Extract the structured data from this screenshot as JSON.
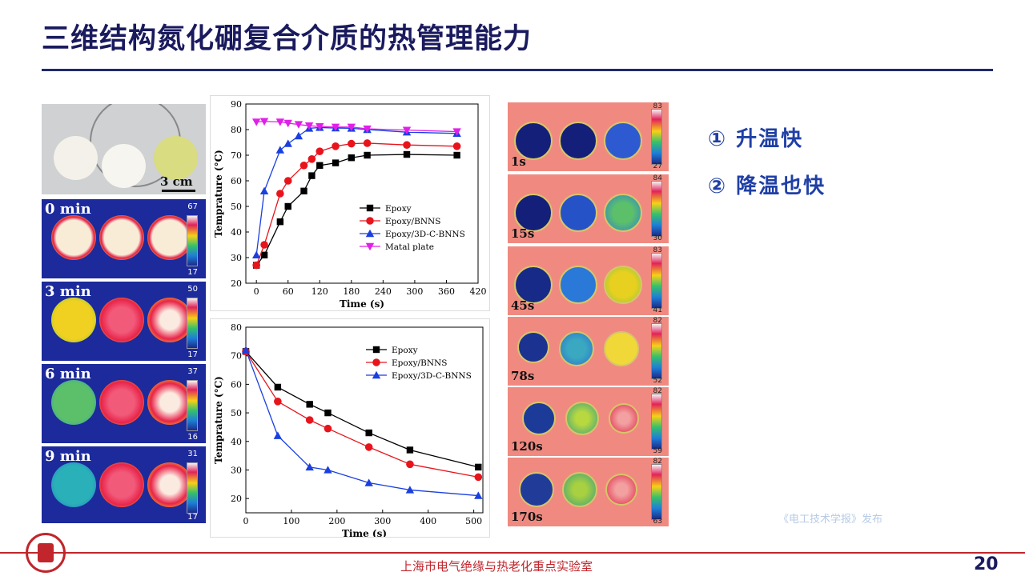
{
  "title": "三维结构氮化硼复合介质的热管理能力",
  "photo": {
    "scale_label": "3 cm"
  },
  "thermal_left": [
    {
      "label": "0 min",
      "max": "67",
      "min": "17"
    },
    {
      "label": "3 min",
      "max": "50",
      "min": "17"
    },
    {
      "label": "6 min",
      "max": "37",
      "min": "16"
    },
    {
      "label": "9 min",
      "max": "31",
      "min": "17"
    }
  ],
  "thermal_right": [
    {
      "label": "1s",
      "max": "83",
      "min": "27"
    },
    {
      "label": "15s",
      "max": "84",
      "min": "30"
    },
    {
      "label": "45s",
      "max": "83",
      "min": "41"
    },
    {
      "label": "78s",
      "max": "82",
      "min": "52"
    },
    {
      "label": "120s",
      "max": "82",
      "min": "59"
    },
    {
      "label": "170s",
      "max": "82",
      "min": "63"
    }
  ],
  "points": [
    "① 升温快",
    "② 降温也快"
  ],
  "watermark": "《电工技术学报》发布",
  "footer": {
    "lab": "上海市电气绝缘与热老化重点实验室",
    "page": "20"
  },
  "colors": {
    "title": "#1a1a5e",
    "accent": "#1f3fa6",
    "footer": "#c0262c"
  },
  "chart_data": [
    {
      "type": "line",
      "title": "",
      "xlabel": "Time (s)",
      "ylabel": "Temprature (°C)",
      "xlim": [
        -20,
        420
      ],
      "ylim": [
        20,
        90
      ],
      "xticks": [
        0,
        60,
        120,
        180,
        240,
        300,
        360,
        420
      ],
      "yticks": [
        20,
        30,
        40,
        50,
        60,
        70,
        80,
        90
      ],
      "legend_position": "right",
      "series": [
        {
          "name": "Epoxy",
          "color": "#000000",
          "marker": "square",
          "x": [
            0,
            15,
            45,
            60,
            90,
            105,
            120,
            150,
            180,
            210,
            285,
            380
          ],
          "y": [
            27,
            31,
            44,
            50,
            56,
            62,
            66,
            67,
            69,
            70,
            70.3,
            70
          ]
        },
        {
          "name": "Epoxy/BNNS",
          "color": "#e8141c",
          "marker": "circle",
          "x": [
            0,
            15,
            45,
            60,
            90,
            105,
            120,
            150,
            180,
            210,
            285,
            380
          ],
          "y": [
            27,
            35,
            55,
            60,
            66,
            68.5,
            71.5,
            73.5,
            74.5,
            74.7,
            74,
            73.5
          ]
        },
        {
          "name": "Epoxy/3D-C-BNNS",
          "color": "#1a3fe0",
          "marker": "triangle",
          "x": [
            0,
            15,
            45,
            60,
            80,
            100,
            120,
            150,
            180,
            210,
            285,
            380
          ],
          "y": [
            31,
            56,
            72,
            74.5,
            77.5,
            80.5,
            80.8,
            80.6,
            80.5,
            80,
            79,
            78.5
          ]
        },
        {
          "name": "Matal plate",
          "color": "#e020e8",
          "marker": "triangle-down",
          "x": [
            0,
            15,
            45,
            60,
            80,
            100,
            120,
            150,
            180,
            210,
            285,
            380
          ],
          "y": [
            83,
            83.2,
            83,
            82.5,
            82,
            81.5,
            81.2,
            81,
            81,
            80.3,
            79.8,
            79.2
          ]
        }
      ]
    },
    {
      "type": "line",
      "title": "",
      "xlabel": "Time (s)",
      "ylabel": "Temprature (°C)",
      "xlim": [
        0,
        520
      ],
      "ylim": [
        15,
        80
      ],
      "xticks": [
        0,
        100,
        200,
        300,
        400,
        500
      ],
      "yticks": [
        20,
        30,
        40,
        50,
        60,
        70,
        80
      ],
      "legend_position": "top-right",
      "series": [
        {
          "name": "Epoxy",
          "color": "#000000",
          "marker": "square",
          "x": [
            0,
            70,
            140,
            180,
            270,
            360,
            510
          ],
          "y": [
            71.5,
            59,
            53,
            50,
            43,
            37,
            31
          ]
        },
        {
          "name": "Epoxy/BNNS",
          "color": "#e8141c",
          "marker": "circle",
          "x": [
            0,
            70,
            140,
            180,
            270,
            360,
            510
          ],
          "y": [
            71.5,
            54,
            47.5,
            44.5,
            38,
            32,
            27.5
          ]
        },
        {
          "name": "Epoxy/3D-C-BNNS",
          "color": "#1a3fe0",
          "marker": "triangle",
          "x": [
            0,
            70,
            140,
            180,
            270,
            360,
            510
          ],
          "y": [
            72,
            42,
            31,
            30,
            25.5,
            23,
            21
          ]
        }
      ]
    }
  ]
}
